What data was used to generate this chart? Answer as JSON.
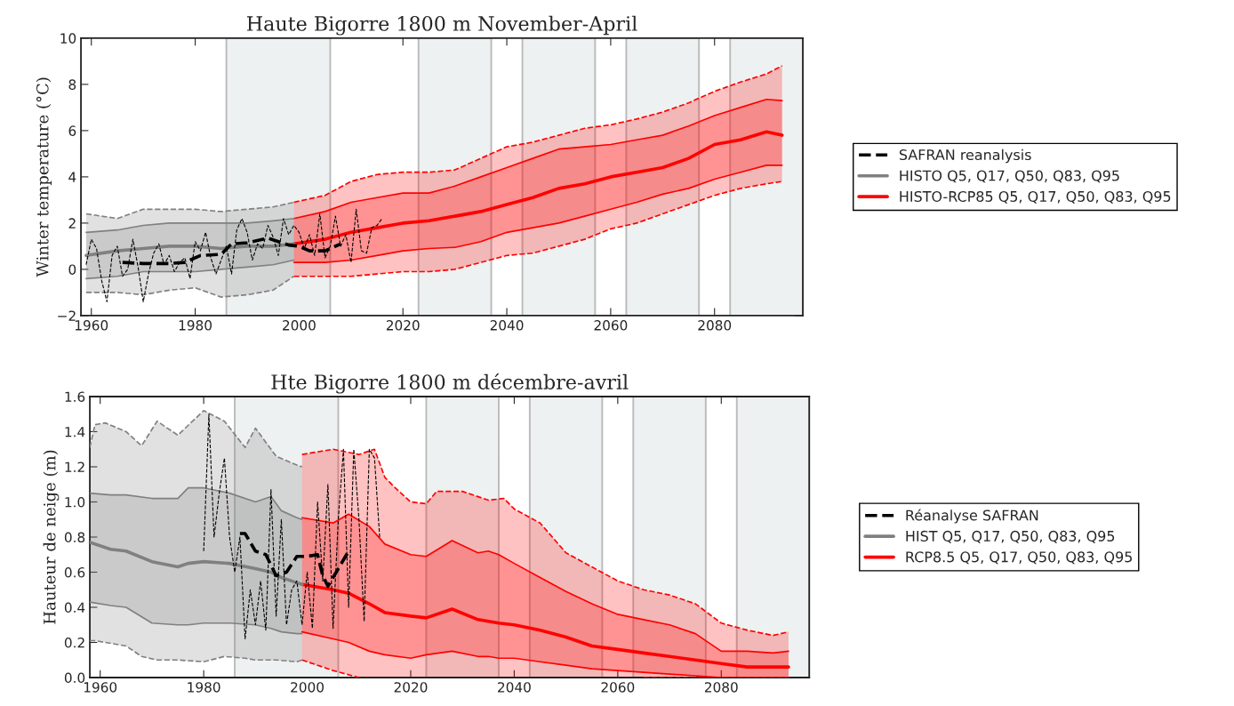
{
  "chart_data": [
    {
      "type": "line",
      "title": "Haute Bigorre 1800 m November-April",
      "ylabel": "Winter temperature (°C)",
      "xlim": [
        1958,
        2097
      ],
      "xticks": [
        1960,
        1980,
        2000,
        2020,
        2040,
        2060,
        2080
      ],
      "ylim": [
        -2,
        10
      ],
      "yticks": [
        {
          "value": -2,
          "label": "−2"
        },
        0,
        2,
        4,
        6,
        8,
        10
      ],
      "grid": false,
      "legend": "right",
      "bands": [
        {
          "axis": "x",
          "from": 1986,
          "to": 2006,
          "color": "#eef1f1"
        },
        {
          "axis": "x",
          "from": 2023,
          "to": 2037,
          "color": "#eef1f1"
        },
        {
          "axis": "x",
          "from": 2043,
          "to": 2057,
          "color": "#eef1f1"
        },
        {
          "axis": "x",
          "from": 2063,
          "to": 2077,
          "color": "#eef1f1"
        },
        {
          "axis": "x",
          "from": 2083,
          "to": 2097,
          "color": "#eef1f1"
        }
      ],
      "series": [
        {
          "name": "SAFRAN reanalysis",
          "color": "#000000",
          "line_style": "dashed",
          "x": [
            1966,
            1970,
            1975,
            1978,
            1981,
            1985,
            1987,
            1990,
            1994,
            1998,
            2000,
            2002,
            2005,
            2008
          ],
          "values": [
            0.3,
            0.25,
            0.25,
            0.3,
            0.6,
            0.65,
            1.1,
            1.15,
            1.35,
            1.05,
            1.0,
            0.8,
            0.8,
            1.1
          ]
        },
        {
          "color": "#000000",
          "line_style": "dashed",
          "x": [
            1959,
            1960,
            1961,
            1962,
            1963,
            1964,
            1965,
            1966,
            1967,
            1968,
            1969,
            1970,
            1971,
            1972,
            1973,
            1974,
            1975,
            1976,
            1977,
            1978,
            1979,
            1980,
            1981,
            1982,
            1983,
            1984,
            1985,
            1986,
            1987,
            1988,
            1989,
            1990,
            1991,
            1992,
            1993,
            1994,
            1995,
            1996,
            1997,
            1998,
            1999,
            2000,
            2001,
            2002,
            2003,
            2004,
            2005,
            2006,
            2007,
            2008,
            2009,
            2010,
            2011,
            2012,
            2013,
            2014,
            2015,
            2016
          ],
          "values": [
            0.2,
            1.3,
            0.9,
            -0.5,
            -1.4,
            0.6,
            1.0,
            -0.3,
            0.0,
            1.3,
            0.1,
            -1.4,
            -0.2,
            0.7,
            1.1,
            0.2,
            0.6,
            -0.1,
            0.3,
            0.5,
            -0.4,
            1.2,
            0.8,
            1.6,
            0.5,
            -0.2,
            0.4,
            1.0,
            -0.2,
            1.7,
            2.2,
            1.6,
            0.4,
            1.1,
            0.9,
            1.9,
            1.4,
            0.6,
            2.2,
            1.5,
            1.9,
            1.6,
            0.9,
            1.5,
            0.6,
            2.4,
            0.5,
            1.0,
            2.3,
            1.0,
            1.5,
            0.3,
            2.6,
            0.8,
            0.7,
            1.8,
            1.9,
            2.2
          ]
        },
        {
          "name": "HISTO Q5, Q17, Q50, Q83, Q95",
          "color": "#808080",
          "line_style": "solid",
          "x": [
            1959,
            1965,
            1970,
            1975,
            1980,
            1985,
            1990,
            1995,
            1999
          ],
          "values": [
            0.6,
            0.8,
            0.9,
            1.0,
            1.0,
            0.9,
            1.0,
            1.0,
            1.1
          ],
          "lower": [
            -0.4,
            -0.3,
            -0.1,
            -0.1,
            -0.1,
            0.0,
            0.1,
            0.2,
            0.4
          ],
          "upper": [
            1.6,
            1.7,
            1.9,
            2.0,
            2.0,
            2.0,
            2.0,
            2.1,
            2.2
          ]
        },
        {
          "color": "#808080",
          "line_style": "solid",
          "x": [
            1959,
            1965,
            1970,
            1975,
            1980,
            1985,
            1990,
            1995,
            1999
          ],
          "values": [
            -0.4,
            -0.3,
            -0.1,
            -0.1,
            -0.1,
            0.0,
            0.1,
            0.2,
            0.4
          ]
        },
        {
          "color": "#808080",
          "line_style": "solid",
          "x": [
            1959,
            1965,
            1970,
            1975,
            1980,
            1985,
            1990,
            1995,
            1999
          ],
          "values": [
            1.6,
            1.7,
            1.9,
            2.0,
            2.0,
            2.0,
            2.0,
            2.1,
            2.2
          ]
        },
        {
          "color": "#808080",
          "line_style": "dashed",
          "x": [
            1959,
            1965,
            1970,
            1975,
            1980,
            1985,
            1990,
            1995,
            1999
          ],
          "values": [
            -1.0,
            -1.0,
            -1.1,
            -0.9,
            -0.8,
            -1.2,
            -1.1,
            -0.9,
            -0.3
          ],
          "lower": [
            -1.0,
            -1.0,
            -1.1,
            -0.9,
            -0.8,
            -1.2,
            -1.1,
            -0.9,
            -0.3
          ],
          "upper": [
            2.4,
            2.2,
            2.6,
            2.6,
            2.6,
            2.5,
            2.6,
            2.7,
            2.9
          ]
        },
        {
          "color": "#808080",
          "line_style": "dashed",
          "x": [
            1959,
            1965,
            1970,
            1975,
            1980,
            1985,
            1990,
            1995,
            1999
          ],
          "values": [
            2.4,
            2.2,
            2.6,
            2.6,
            2.6,
            2.5,
            2.6,
            2.7,
            2.9
          ]
        },
        {
          "name": "HISTO-RCP85 Q5, Q17, Q50, Q83, Q95",
          "color": "#ff0000",
          "line_style": "solid",
          "x": [
            1999,
            2005,
            2010,
            2015,
            2020,
            2025,
            2030,
            2035,
            2040,
            2045,
            2050,
            2055,
            2060,
            2065,
            2070,
            2075,
            2080,
            2085,
            2090,
            2093
          ],
          "values": [
            1.1,
            1.3,
            1.6,
            1.8,
            2.0,
            2.1,
            2.3,
            2.5,
            2.8,
            3.1,
            3.5,
            3.7,
            4.0,
            4.2,
            4.4,
            4.8,
            5.4,
            5.6,
            5.95,
            5.8
          ],
          "lower": [
            0.3,
            0.3,
            0.4,
            0.6,
            0.8,
            0.9,
            0.95,
            1.2,
            1.6,
            1.8,
            2.0,
            2.3,
            2.6,
            2.9,
            3.25,
            3.5,
            3.9,
            4.2,
            4.5,
            4.5
          ],
          "upper": [
            2.2,
            2.5,
            2.9,
            3.1,
            3.3,
            3.3,
            3.6,
            4.0,
            4.4,
            4.8,
            5.2,
            5.3,
            5.4,
            5.6,
            5.8,
            6.2,
            6.65,
            7.0,
            7.35,
            7.3
          ]
        },
        {
          "color": "#ff0000",
          "line_style": "solid",
          "x": [
            1999,
            2005,
            2010,
            2015,
            2020,
            2025,
            2030,
            2035,
            2040,
            2045,
            2050,
            2055,
            2060,
            2065,
            2070,
            2075,
            2080,
            2085,
            2090,
            2093
          ],
          "values": [
            0.3,
            0.3,
            0.4,
            0.6,
            0.8,
            0.9,
            0.95,
            1.2,
            1.6,
            1.8,
            2.0,
            2.3,
            2.6,
            2.9,
            3.25,
            3.5,
            3.9,
            4.2,
            4.5,
            4.5
          ]
        },
        {
          "color": "#ff0000",
          "line_style": "solid",
          "x": [
            1999,
            2005,
            2010,
            2015,
            2020,
            2025,
            2030,
            2035,
            2040,
            2045,
            2050,
            2055,
            2060,
            2065,
            2070,
            2075,
            2080,
            2085,
            2090,
            2093
          ],
          "values": [
            2.2,
            2.5,
            2.9,
            3.1,
            3.3,
            3.3,
            3.6,
            4.0,
            4.4,
            4.8,
            5.2,
            5.3,
            5.4,
            5.6,
            5.8,
            6.2,
            6.65,
            7.0,
            7.35,
            7.3
          ]
        },
        {
          "color": "#ff0000",
          "line_style": "dashed",
          "x": [
            1999,
            2005,
            2010,
            2015,
            2020,
            2025,
            2030,
            2035,
            2040,
            2045,
            2050,
            2055,
            2060,
            2065,
            2070,
            2075,
            2080,
            2085,
            2090,
            2093
          ],
          "values": [
            -0.3,
            -0.3,
            -0.3,
            -0.2,
            -0.1,
            -0.1,
            0.0,
            0.3,
            0.6,
            0.7,
            1.0,
            1.3,
            1.75,
            2.0,
            2.4,
            2.8,
            3.2,
            3.5,
            3.7,
            3.8
          ],
          "lower": [
            -0.3,
            -0.3,
            -0.3,
            -0.2,
            -0.1,
            -0.1,
            0.0,
            0.3,
            0.6,
            0.7,
            1.0,
            1.3,
            1.75,
            2.0,
            2.4,
            2.8,
            3.2,
            3.5,
            3.7,
            3.8
          ],
          "upper": [
            2.9,
            3.2,
            3.8,
            4.1,
            4.2,
            4.2,
            4.3,
            4.8,
            5.3,
            5.5,
            5.8,
            6.1,
            6.25,
            6.5,
            6.8,
            7.2,
            7.7,
            8.1,
            8.45,
            8.8
          ]
        },
        {
          "color": "#ff0000",
          "line_style": "dashed",
          "x": [
            1999,
            2005,
            2010,
            2015,
            2020,
            2025,
            2030,
            2035,
            2040,
            2045,
            2050,
            2055,
            2060,
            2065,
            2070,
            2075,
            2080,
            2085,
            2090,
            2093
          ],
          "values": [
            2.9,
            3.2,
            3.8,
            4.1,
            4.2,
            4.2,
            4.3,
            4.8,
            5.3,
            5.5,
            5.8,
            6.1,
            6.25,
            6.5,
            6.8,
            7.2,
            7.7,
            8.1,
            8.45,
            8.8
          ]
        }
      ]
    },
    {
      "type": "line",
      "title": "Hte Bigorre 1800 m décembre-avril",
      "ylabel": "Hauteur de neige (m)",
      "xlim": [
        1958,
        2097
      ],
      "xticks": [
        1960,
        1980,
        2000,
        2020,
        2040,
        2060,
        2080
      ],
      "ylim": [
        0,
        1.6
      ],
      "yticks": [
        {
          "value": 0,
          "label": "0.0"
        },
        0.2,
        0.4,
        0.6,
        0.8,
        {
          "value": 1,
          "label": "1.0"
        },
        1.2,
        1.4,
        1.6
      ],
      "grid": false,
      "legend": "right",
      "bands": [
        {
          "axis": "x",
          "from": 1986,
          "to": 2006,
          "color": "#eef1f1"
        },
        {
          "axis": "x",
          "from": 2023,
          "to": 2037,
          "color": "#eef1f1"
        },
        {
          "axis": "x",
          "from": 2043,
          "to": 2057,
          "color": "#eef1f1"
        },
        {
          "axis": "x",
          "from": 2063,
          "to": 2077,
          "color": "#eef1f1"
        },
        {
          "axis": "x",
          "from": 2083,
          "to": 2097,
          "color": "#eef1f1"
        }
      ],
      "series": [
        {
          "name": "Réanalyse SAFRAN",
          "color": "#000000",
          "line_style": "dashed",
          "x": [
            1987,
            1988,
            1990,
            1992,
            1994,
            1996,
            1998,
            2000,
            2002,
            2003,
            2004,
            2006,
            2008
          ],
          "values": [
            0.82,
            0.82,
            0.72,
            0.7,
            0.58,
            0.6,
            0.69,
            0.69,
            0.7,
            0.58,
            0.52,
            0.62,
            0.72
          ]
        },
        {
          "color": "#000000",
          "line_style": "dashed",
          "x": [
            1980,
            1981,
            1982,
            1983,
            1984,
            1985,
            1986,
            1987,
            1988,
            1989,
            1990,
            1991,
            1992,
            1993,
            1994,
            1995,
            1996,
            1997,
            1998,
            1999,
            2000,
            2001,
            2002,
            2003,
            2004,
            2005,
            2006,
            2007,
            2008,
            2009,
            2010,
            2011,
            2012,
            2013,
            2014
          ],
          "values": [
            0.72,
            1.5,
            0.8,
            1.05,
            1.25,
            0.8,
            0.6,
            0.8,
            0.22,
            0.5,
            0.3,
            0.55,
            0.27,
            1.07,
            0.35,
            0.9,
            0.3,
            0.5,
            0.55,
            0.3,
            0.6,
            0.28,
            1.0,
            0.55,
            1.1,
            0.28,
            0.9,
            1.3,
            0.4,
            1.3,
            0.9,
            0.32,
            1.3,
            1.25,
            0.8
          ]
        },
        {
          "name": "HIST Q5, Q17, Q50, Q83, Q95",
          "color": "#808080",
          "line_style": "solid",
          "x": [
            1958,
            1962,
            1965,
            1970,
            1975,
            1977,
            1980,
            1985,
            1990,
            1993,
            1995,
            1998,
            1999
          ],
          "values": [
            0.77,
            0.73,
            0.72,
            0.66,
            0.63,
            0.65,
            0.66,
            0.65,
            0.62,
            0.6,
            0.57,
            0.54,
            0.53
          ],
          "lower": [
            0.43,
            0.41,
            0.4,
            0.31,
            0.3,
            0.3,
            0.31,
            0.31,
            0.3,
            0.28,
            0.26,
            0.25,
            0.25
          ],
          "upper": [
            1.05,
            1.04,
            1.04,
            1.02,
            1.02,
            1.08,
            1.08,
            1.05,
            1.0,
            1.03,
            0.95,
            0.91,
            0.9
          ]
        },
        {
          "color": "#808080",
          "line_style": "solid",
          "x": [
            1958,
            1962,
            1965,
            1970,
            1975,
            1977,
            1980,
            1985,
            1990,
            1993,
            1995,
            1998,
            1999
          ],
          "values": [
            0.43,
            0.41,
            0.4,
            0.31,
            0.3,
            0.3,
            0.31,
            0.31,
            0.3,
            0.28,
            0.26,
            0.25,
            0.25
          ]
        },
        {
          "color": "#808080",
          "line_style": "solid",
          "x": [
            1958,
            1962,
            1965,
            1970,
            1975,
            1977,
            1980,
            1985,
            1990,
            1993,
            1995,
            1998,
            1999
          ],
          "values": [
            1.05,
            1.04,
            1.04,
            1.02,
            1.02,
            1.08,
            1.08,
            1.05,
            1.0,
            1.03,
            0.95,
            0.91,
            0.9
          ]
        },
        {
          "color": "#808080",
          "line_style": "dashed",
          "x": [
            1958,
            1959,
            1961,
            1965,
            1968,
            1971,
            1975,
            1980,
            1984,
            1988,
            1990,
            1994,
            1998,
            1999
          ],
          "values": [
            0.21,
            0.21,
            0.2,
            0.18,
            0.12,
            0.1,
            0.1,
            0.09,
            0.12,
            0.11,
            0.1,
            0.1,
            0.09,
            0.1
          ],
          "lower": [
            0.21,
            0.21,
            0.2,
            0.18,
            0.12,
            0.1,
            0.1,
            0.09,
            0.12,
            0.11,
            0.1,
            0.1,
            0.09,
            0.1
          ],
          "upper": [
            1.31,
            1.44,
            1.45,
            1.4,
            1.32,
            1.46,
            1.38,
            1.52,
            1.46,
            1.31,
            1.42,
            1.26,
            1.21,
            1.2
          ]
        },
        {
          "color": "#808080",
          "line_style": "dashed",
          "x": [
            1958,
            1959,
            1961,
            1965,
            1968,
            1971,
            1975,
            1980,
            1984,
            1988,
            1990,
            1994,
            1998,
            1999
          ],
          "values": [
            1.31,
            1.44,
            1.45,
            1.4,
            1.32,
            1.46,
            1.38,
            1.52,
            1.46,
            1.31,
            1.42,
            1.26,
            1.21,
            1.2
          ]
        },
        {
          "name": "RCP8.5 Q5, Q17, Q50, Q83, Q95",
          "color": "#ff0000",
          "line_style": "solid",
          "x": [
            1999,
            2005,
            2008,
            2012,
            2015,
            2020,
            2023,
            2028,
            2033,
            2035,
            2037,
            2040,
            2045,
            2050,
            2055,
            2060,
            2065,
            2070,
            2075,
            2080,
            2085,
            2090,
            2093
          ],
          "values": [
            0.53,
            0.5,
            0.48,
            0.42,
            0.37,
            0.35,
            0.34,
            0.39,
            0.33,
            0.32,
            0.31,
            0.3,
            0.27,
            0.23,
            0.18,
            0.16,
            0.14,
            0.12,
            0.1,
            0.08,
            0.06,
            0.06,
            0.06
          ],
          "lower": [
            0.26,
            0.22,
            0.2,
            0.15,
            0.13,
            0.11,
            0.13,
            0.15,
            0.12,
            0.12,
            0.11,
            0.11,
            0.09,
            0.07,
            0.05,
            0.04,
            0.03,
            0.02,
            0.01,
            0,
            0,
            0,
            0
          ],
          "upper": [
            0.91,
            0.88,
            0.93,
            0.86,
            0.76,
            0.7,
            0.69,
            0.78,
            0.71,
            0.72,
            0.7,
            0.65,
            0.57,
            0.49,
            0.42,
            0.36,
            0.33,
            0.3,
            0.25,
            0.15,
            0.15,
            0.14,
            0.15
          ]
        },
        {
          "color": "#ff0000",
          "line_style": "solid",
          "x": [
            1999,
            2005,
            2008,
            2012,
            2015,
            2020,
            2023,
            2028,
            2033,
            2035,
            2037,
            2040,
            2045,
            2050,
            2055,
            2060,
            2065,
            2070,
            2075,
            2080,
            2085,
            2090,
            2093
          ],
          "values": [
            0.26,
            0.22,
            0.2,
            0.15,
            0.13,
            0.11,
            0.13,
            0.15,
            0.12,
            0.12,
            0.11,
            0.11,
            0.09,
            0.07,
            0.05,
            0.04,
            0.03,
            0.02,
            0.01,
            0,
            0,
            0,
            0
          ]
        },
        {
          "color": "#ff0000",
          "line_style": "solid",
          "x": [
            1999,
            2005,
            2008,
            2012,
            2015,
            2020,
            2023,
            2028,
            2033,
            2035,
            2037,
            2040,
            2045,
            2050,
            2055,
            2060,
            2065,
            2070,
            2075,
            2080,
            2085,
            2090,
            2093
          ],
          "values": [
            0.91,
            0.88,
            0.93,
            0.86,
            0.76,
            0.7,
            0.69,
            0.78,
            0.71,
            0.72,
            0.7,
            0.65,
            0.57,
            0.49,
            0.42,
            0.36,
            0.33,
            0.3,
            0.25,
            0.15,
            0.15,
            0.14,
            0.15
          ]
        },
        {
          "color": "#ff0000",
          "line_style": "dashed",
          "x": [
            1999,
            2005,
            2010,
            2013,
            2015,
            2017,
            2020,
            2023,
            2025,
            2030,
            2035,
            2038,
            2040,
            2045,
            2050,
            2055,
            2060,
            2065,
            2070,
            2075,
            2080,
            2085,
            2090,
            2093
          ],
          "values": [
            0.1,
            0.04,
            0,
            null,
            null,
            null,
            null,
            null,
            null,
            null,
            null,
            null,
            null,
            null,
            null,
            null,
            null,
            0,
            0,
            0,
            0,
            0,
            0,
            0
          ],
          "lower": [
            0.1,
            0.04,
            0,
            0,
            0,
            0,
            0,
            0,
            0,
            0,
            0,
            0,
            0,
            0,
            0,
            0,
            0,
            0,
            0,
            0,
            0,
            0,
            0,
            0
          ],
          "upper": [
            1.27,
            1.3,
            1.27,
            1.3,
            1.14,
            1.08,
            1.0,
            0.99,
            1.06,
            1.06,
            1.01,
            1.02,
            0.96,
            0.88,
            0.71,
            0.63,
            0.55,
            0.5,
            0.47,
            0.42,
            0.31,
            0.27,
            0.24,
            0.26
          ]
        },
        {
          "color": "#ff0000",
          "line_style": "dashed",
          "x": [
            1999,
            2005,
            2010,
            2013,
            2015,
            2017,
            2020,
            2023,
            2025,
            2030,
            2035,
            2038,
            2040,
            2045,
            2050,
            2055,
            2060,
            2065,
            2070,
            2075,
            2080,
            2085,
            2090,
            2093
          ],
          "values": [
            1.27,
            1.3,
            1.27,
            1.3,
            1.14,
            1.08,
            1.0,
            0.99,
            1.06,
            1.06,
            1.01,
            1.02,
            0.96,
            0.88,
            0.71,
            0.63,
            0.55,
            0.5,
            0.47,
            0.42,
            0.31,
            0.27,
            0.24,
            0.26
          ]
        }
      ]
    }
  ]
}
